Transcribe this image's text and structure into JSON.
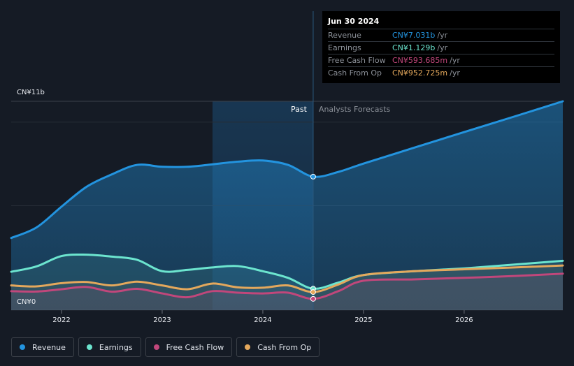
{
  "colors": {
    "background": "#151b25",
    "revenue": "#2394df",
    "earnings": "#6ce5cf",
    "free_cash_flow": "#c1477b",
    "cash_from_op": "#e4a85c"
  },
  "tooltip": {
    "date": "Jun 30 2024",
    "rows": [
      {
        "label": "Revenue",
        "value": "CN¥7.031b",
        "unit": "/yr"
      },
      {
        "label": "Earnings",
        "value": "CN¥1.129b",
        "unit": "/yr"
      },
      {
        "label": "Free Cash Flow",
        "value": "CN¥593.685m",
        "unit": "/yr"
      },
      {
        "label": "Cash From Op",
        "value": "CN¥952.725m",
        "unit": "/yr"
      }
    ]
  },
  "legend": [
    {
      "label": "Revenue",
      "icon": "revenue-dot-icon"
    },
    {
      "label": "Earnings",
      "icon": "earnings-dot-icon"
    },
    {
      "label": "Free Cash Flow",
      "icon": "free-cash-flow-dot-icon"
    },
    {
      "label": "Cash From Op",
      "icon": "cash-from-op-dot-icon"
    }
  ],
  "chart_data": {
    "type": "line",
    "title": "",
    "xlabel": "",
    "ylabel": "",
    "ylim": [
      0,
      11
    ],
    "y_unit": "CN¥ billions",
    "y_tick_labels": [
      "CN¥11b",
      "CN¥0"
    ],
    "x_tick_labels": [
      "2022",
      "2023",
      "2024",
      "2025",
      "2026"
    ],
    "xlim": [
      2021.5,
      2026.98
    ],
    "past_label": "Past",
    "forecast_label": "Analysts Forecasts",
    "past_region_start": 2023.5,
    "divider_x": 2024.5,
    "series": [
      {
        "name": "Revenue",
        "key": "revenue",
        "x": [
          2021.5,
          2021.75,
          2022.0,
          2022.25,
          2022.5,
          2022.75,
          2023.0,
          2023.25,
          2023.5,
          2023.75,
          2024.0,
          2024.25,
          2024.5,
          2024.75,
          2025.0,
          2025.5,
          2026.0,
          2026.5,
          2026.98
        ],
        "values": [
          3.8,
          4.35,
          5.45,
          6.5,
          7.15,
          7.65,
          7.55,
          7.55,
          7.68,
          7.82,
          7.88,
          7.65,
          7.03,
          7.28,
          7.72,
          8.55,
          9.38,
          10.2,
          11.0
        ]
      },
      {
        "name": "Earnings",
        "key": "earnings",
        "x": [
          2021.5,
          2021.75,
          2022.0,
          2022.25,
          2022.5,
          2022.75,
          2023.0,
          2023.25,
          2023.5,
          2023.75,
          2024.0,
          2024.25,
          2024.5,
          2024.75,
          2025.0,
          2025.5,
          2026.0,
          2026.5,
          2026.98
        ],
        "values": [
          2.02,
          2.3,
          2.85,
          2.92,
          2.82,
          2.65,
          2.05,
          2.12,
          2.25,
          2.32,
          2.05,
          1.7,
          1.129,
          1.45,
          1.85,
          2.05,
          2.2,
          2.4,
          2.6
        ]
      },
      {
        "name": "Free Cash Flow",
        "key": "free_cash_flow",
        "x": [
          2021.5,
          2021.75,
          2022.0,
          2022.25,
          2022.5,
          2022.75,
          2023.0,
          2023.25,
          2023.5,
          2023.75,
          2024.0,
          2024.25,
          2024.5,
          2024.75,
          2025.0,
          2025.5,
          2026.0,
          2026.5,
          2026.98
        ],
        "values": [
          1.0,
          0.98,
          1.1,
          1.22,
          0.97,
          1.12,
          0.88,
          0.68,
          1.0,
          0.92,
          0.88,
          0.92,
          0.594,
          1.0,
          1.55,
          1.62,
          1.7,
          1.8,
          1.92
        ]
      },
      {
        "name": "Cash From Op",
        "key": "cash_from_op",
        "x": [
          2021.5,
          2021.75,
          2022.0,
          2022.25,
          2022.5,
          2022.75,
          2023.0,
          2023.25,
          2023.5,
          2023.75,
          2024.0,
          2024.25,
          2024.5,
          2024.75,
          2025.0,
          2025.5,
          2026.0,
          2026.5,
          2026.98
        ],
        "values": [
          1.3,
          1.25,
          1.42,
          1.48,
          1.3,
          1.5,
          1.3,
          1.1,
          1.4,
          1.2,
          1.18,
          1.3,
          0.953,
          1.35,
          1.85,
          2.05,
          2.15,
          2.25,
          2.35
        ]
      }
    ]
  }
}
